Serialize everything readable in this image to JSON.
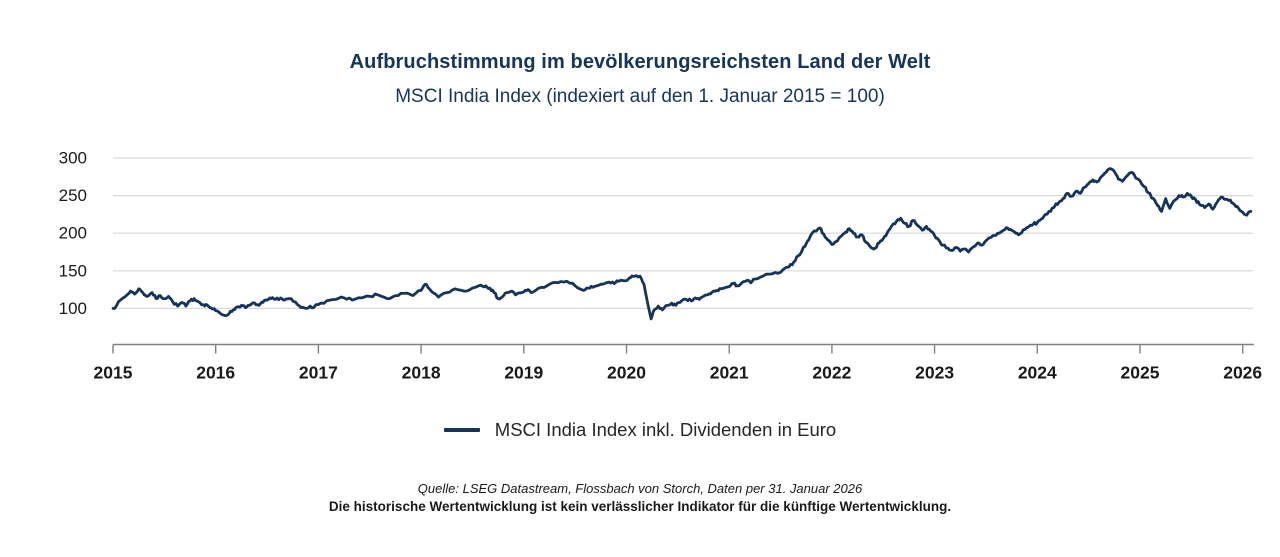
{
  "page": {
    "title": "Aufbruchstimmung im bevölkerungsreichsten Land der Welt",
    "subtitle": "MSCI India Index (indexiert auf den 1. Januar 2015 = 100)",
    "source": "Quelle: LSEG Datastream, Flossbach von Storch, Daten per 31. Januar 2026",
    "disclaimer": "Die historische Wertentwicklung ist kein verlässlicher Indikator für die künftige Wertentwicklung."
  },
  "legend": {
    "label": "MSCI India Index inkl. Dividenden in Euro"
  },
  "colors": {
    "title_navy": "#14355C",
    "line_navy": "#15345B",
    "grid_gray": "#D9D9D9",
    "axis_gray": "#808080",
    "label_black": "#1A1A1A"
  },
  "chart_data": {
    "type": "line",
    "title": "Aufbruchstimmung im bevölkerungsreichsten Land der Welt",
    "subtitle": "MSCI India Index (indexiert auf den 1. Januar 2015 = 100)",
    "xlabel": "",
    "ylabel": "",
    "x_ticks": [
      2015,
      2016,
      2017,
      2018,
      2019,
      2020,
      2021,
      2022,
      2023,
      2024,
      2025,
      2026
    ],
    "y_ticks": [
      100,
      150,
      200,
      250,
      300
    ],
    "xlim": [
      2015,
      2026.1
    ],
    "ylim": [
      48,
      300
    ],
    "grid": "horizontal",
    "legend_position": "bottom-center",
    "series": [
      {
        "name": "MSCI India Index inkl. Dividenden in Euro",
        "color": "#15345B",
        "points": [
          [
            2015.0,
            100
          ],
          [
            2015.04,
            105
          ],
          [
            2015.08,
            112
          ],
          [
            2015.13,
            117
          ],
          [
            2015.17,
            123
          ],
          [
            2015.21,
            119
          ],
          [
            2015.25,
            126
          ],
          [
            2015.29,
            121
          ],
          [
            2015.33,
            116
          ],
          [
            2015.38,
            121
          ],
          [
            2015.42,
            113
          ],
          [
            2015.46,
            117
          ],
          [
            2015.5,
            113
          ],
          [
            2015.54,
            116
          ],
          [
            2015.58,
            109
          ],
          [
            2015.63,
            103
          ],
          [
            2015.67,
            108
          ],
          [
            2015.71,
            103
          ],
          [
            2015.75,
            110
          ],
          [
            2015.79,
            113
          ],
          [
            2015.83,
            109
          ],
          [
            2015.88,
            105
          ],
          [
            2015.92,
            104
          ],
          [
            2015.96,
            100
          ],
          [
            2016.0,
            97
          ],
          [
            2016.04,
            94
          ],
          [
            2016.08,
            91
          ],
          [
            2016.13,
            93
          ],
          [
            2016.17,
            98
          ],
          [
            2016.21,
            102
          ],
          [
            2016.25,
            104
          ],
          [
            2016.29,
            101
          ],
          [
            2016.33,
            104
          ],
          [
            2016.38,
            107
          ],
          [
            2016.42,
            104
          ],
          [
            2016.46,
            108
          ],
          [
            2016.5,
            111
          ],
          [
            2016.54,
            113
          ],
          [
            2016.58,
            112
          ],
          [
            2016.63,
            114
          ],
          [
            2016.67,
            111
          ],
          [
            2016.71,
            113
          ],
          [
            2016.75,
            110
          ],
          [
            2016.79,
            106
          ],
          [
            2016.83,
            101
          ],
          [
            2016.88,
            100
          ],
          [
            2016.92,
            103
          ],
          [
            2016.96,
            102
          ],
          [
            2017.0,
            105
          ],
          [
            2017.08,
            110
          ],
          [
            2017.17,
            112
          ],
          [
            2017.25,
            114
          ],
          [
            2017.33,
            111
          ],
          [
            2017.42,
            114
          ],
          [
            2017.5,
            116
          ],
          [
            2017.58,
            118
          ],
          [
            2017.67,
            113
          ],
          [
            2017.75,
            117
          ],
          [
            2017.83,
            120
          ],
          [
            2017.92,
            117
          ],
          [
            2018.0,
            124
          ],
          [
            2018.04,
            132
          ],
          [
            2018.08,
            126
          ],
          [
            2018.17,
            115
          ],
          [
            2018.25,
            121
          ],
          [
            2018.33,
            126
          ],
          [
            2018.42,
            123
          ],
          [
            2018.5,
            127
          ],
          [
            2018.58,
            131
          ],
          [
            2018.63,
            130
          ],
          [
            2018.67,
            127
          ],
          [
            2018.71,
            121
          ],
          [
            2018.75,
            113
          ],
          [
            2018.79,
            115
          ],
          [
            2018.83,
            121
          ],
          [
            2018.88,
            123
          ],
          [
            2018.92,
            118
          ],
          [
            2019.0,
            122
          ],
          [
            2019.04,
            125
          ],
          [
            2019.08,
            121
          ],
          [
            2019.17,
            128
          ],
          [
            2019.25,
            132
          ],
          [
            2019.33,
            134
          ],
          [
            2019.42,
            136
          ],
          [
            2019.5,
            130
          ],
          [
            2019.58,
            124
          ],
          [
            2019.63,
            127
          ],
          [
            2019.67,
            128
          ],
          [
            2019.75,
            132
          ],
          [
            2019.83,
            135
          ],
          [
            2019.88,
            133
          ],
          [
            2019.92,
            136
          ],
          [
            2020.0,
            137
          ],
          [
            2020.04,
            141
          ],
          [
            2020.08,
            143
          ],
          [
            2020.13,
            143
          ],
          [
            2020.17,
            132
          ],
          [
            2020.21,
            104
          ],
          [
            2020.24,
            86
          ],
          [
            2020.27,
            98
          ],
          [
            2020.31,
            103
          ],
          [
            2020.35,
            98
          ],
          [
            2020.4,
            104
          ],
          [
            2020.44,
            107
          ],
          [
            2020.48,
            104
          ],
          [
            2020.52,
            108
          ],
          [
            2020.58,
            112
          ],
          [
            2020.63,
            110
          ],
          [
            2020.67,
            114
          ],
          [
            2020.71,
            112
          ],
          [
            2020.75,
            116
          ],
          [
            2020.79,
            118
          ],
          [
            2020.83,
            121
          ],
          [
            2020.88,
            124
          ],
          [
            2020.92,
            126
          ],
          [
            2021.0,
            129
          ],
          [
            2021.04,
            133
          ],
          [
            2021.08,
            130
          ],
          [
            2021.13,
            135
          ],
          [
            2021.17,
            137
          ],
          [
            2021.21,
            134
          ],
          [
            2021.25,
            139
          ],
          [
            2021.33,
            143
          ],
          [
            2021.42,
            146
          ],
          [
            2021.5,
            148
          ],
          [
            2021.58,
            155
          ],
          [
            2021.63,
            162
          ],
          [
            2021.67,
            170
          ],
          [
            2021.71,
            177
          ],
          [
            2021.75,
            186
          ],
          [
            2021.79,
            196
          ],
          [
            2021.83,
            203
          ],
          [
            2021.88,
            207
          ],
          [
            2021.92,
            199
          ],
          [
            2021.96,
            191
          ],
          [
            2022.0,
            185
          ],
          [
            2022.04,
            189
          ],
          [
            2022.08,
            195
          ],
          [
            2022.13,
            201
          ],
          [
            2022.17,
            206
          ],
          [
            2022.21,
            200
          ],
          [
            2022.25,
            195
          ],
          [
            2022.29,
            198
          ],
          [
            2022.33,
            188
          ],
          [
            2022.38,
            181
          ],
          [
            2022.42,
            180
          ],
          [
            2022.46,
            187
          ],
          [
            2022.5,
            193
          ],
          [
            2022.54,
            201
          ],
          [
            2022.58,
            209
          ],
          [
            2022.63,
            216
          ],
          [
            2022.67,
            220
          ],
          [
            2022.71,
            213
          ],
          [
            2022.75,
            209
          ],
          [
            2022.79,
            217
          ],
          [
            2022.83,
            211
          ],
          [
            2022.88,
            204
          ],
          [
            2022.92,
            209
          ],
          [
            2022.96,
            203
          ],
          [
            2023.0,
            197
          ],
          [
            2023.04,
            191
          ],
          [
            2023.08,
            184
          ],
          [
            2023.13,
            180
          ],
          [
            2023.17,
            177
          ],
          [
            2023.21,
            181
          ],
          [
            2023.25,
            176
          ],
          [
            2023.29,
            179
          ],
          [
            2023.33,
            175
          ],
          [
            2023.38,
            182
          ],
          [
            2023.42,
            187
          ],
          [
            2023.46,
            184
          ],
          [
            2023.5,
            190
          ],
          [
            2023.54,
            194
          ],
          [
            2023.58,
            197
          ],
          [
            2023.63,
            200
          ],
          [
            2023.67,
            204
          ],
          [
            2023.71,
            207
          ],
          [
            2023.75,
            204
          ],
          [
            2023.79,
            200
          ],
          [
            2023.83,
            199
          ],
          [
            2023.88,
            205
          ],
          [
            2023.92,
            209
          ],
          [
            2023.96,
            212
          ],
          [
            2024.0,
            214
          ],
          [
            2024.04,
            219
          ],
          [
            2024.08,
            225
          ],
          [
            2024.13,
            229
          ],
          [
            2024.17,
            236
          ],
          [
            2024.21,
            241
          ],
          [
            2024.25,
            246
          ],
          [
            2024.29,
            253
          ],
          [
            2024.33,
            249
          ],
          [
            2024.38,
            256
          ],
          [
            2024.42,
            253
          ],
          [
            2024.46,
            261
          ],
          [
            2024.5,
            266
          ],
          [
            2024.54,
            271
          ],
          [
            2024.58,
            268
          ],
          [
            2024.63,
            276
          ],
          [
            2024.67,
            281
          ],
          [
            2024.71,
            286
          ],
          [
            2024.75,
            282
          ],
          [
            2024.79,
            272
          ],
          [
            2024.83,
            269
          ],
          [
            2024.88,
            277
          ],
          [
            2024.92,
            281
          ],
          [
            2024.96,
            273
          ],
          [
            2025.0,
            270
          ],
          [
            2025.04,
            262
          ],
          [
            2025.08,
            254
          ],
          [
            2025.13,
            246
          ],
          [
            2025.17,
            237
          ],
          [
            2025.21,
            229
          ],
          [
            2025.25,
            246
          ],
          [
            2025.29,
            233
          ],
          [
            2025.33,
            243
          ],
          [
            2025.38,
            250
          ],
          [
            2025.42,
            248
          ],
          [
            2025.46,
            253
          ],
          [
            2025.5,
            249
          ],
          [
            2025.54,
            245
          ],
          [
            2025.58,
            238
          ],
          [
            2025.63,
            234
          ],
          [
            2025.67,
            239
          ],
          [
            2025.71,
            232
          ],
          [
            2025.75,
            241
          ],
          [
            2025.79,
            248
          ],
          [
            2025.83,
            245
          ],
          [
            2025.88,
            244
          ],
          [
            2025.92,
            238
          ],
          [
            2025.96,
            233
          ],
          [
            2026.0,
            228
          ],
          [
            2026.04,
            224
          ],
          [
            2026.08,
            229
          ]
        ]
      }
    ]
  }
}
